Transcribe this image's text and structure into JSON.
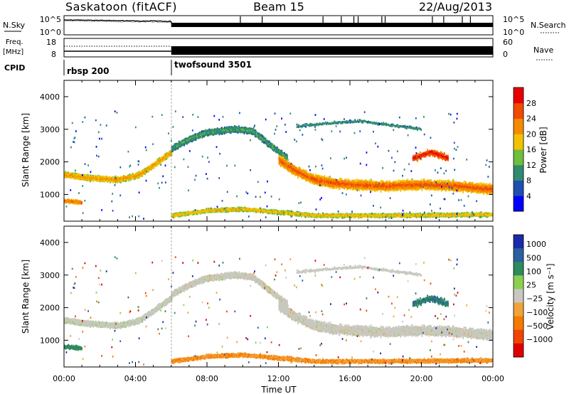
{
  "header": {
    "title": "Saskatoon (fitACF)",
    "beam": "Beam 15",
    "date": "22/Aug/2013"
  },
  "noise_panel": {
    "left_label": "N.Sky",
    "right_label": "N.Search",
    "left_ticks": [
      "10^5",
      "10^0"
    ],
    "right_ticks": [
      "10^5",
      "10^0"
    ]
  },
  "freq_panel": {
    "left_label": "Freq.",
    "left_unit": "[MHz]",
    "right_label": "Nave",
    "left_ticks": [
      "18",
      "8"
    ],
    "right_ticks": [
      "60",
      "0"
    ]
  },
  "cpid": {
    "label": "CPID",
    "segments": [
      {
        "name": "rbsp 200",
        "start_hour": 0
      },
      {
        "name": "twofsound 3501",
        "start_hour": 6
      }
    ]
  },
  "colors": {
    "power_scale": [
      "#0000ff",
      "#1c4fb0",
      "#2f8a70",
      "#6fbe3c",
      "#f2c200",
      "#f58a00",
      "#f24a00",
      "#e80000"
    ],
    "velocity_scale": [
      "#1a2aa8",
      "#2a5fa0",
      "#2f8a5e",
      "#8ccf4f",
      "#c8c8c0",
      "#f2a23a",
      "#f57a00",
      "#f24400",
      "#e00000"
    ]
  },
  "chart_data": [
    {
      "type": "heatmap",
      "panel": "power",
      "xlabel": "",
      "ylabel": "Slant Range [km]",
      "ylim": [
        180,
        4500
      ],
      "xlim": [
        0,
        24
      ],
      "y_ticks": [
        "1000",
        "2000",
        "3000",
        "4000"
      ],
      "colorbar_label": "Power [dB]",
      "colorbar_ticks": [
        "4",
        "8",
        "12",
        "16",
        "20",
        "24",
        "28"
      ],
      "colorbar_range": [
        0,
        32
      ]
    },
    {
      "type": "heatmap",
      "panel": "velocity",
      "xlabel": "Time UT",
      "ylabel": "Slant Range [km]",
      "ylim": [
        180,
        4500
      ],
      "xlim": [
        0,
        24
      ],
      "x_ticks": [
        "00:00",
        "04:00",
        "08:00",
        "12:00",
        "16:00",
        "20:00",
        "00:00"
      ],
      "y_ticks": [
        "1000",
        "2000",
        "3000",
        "4000"
      ],
      "colorbar_label": "Velocity [m s⁻¹]",
      "colorbar_ticks": [
        "1000",
        "500",
        "100",
        "25",
        "−25",
        "−100",
        "−500",
        "−1000"
      ]
    }
  ]
}
